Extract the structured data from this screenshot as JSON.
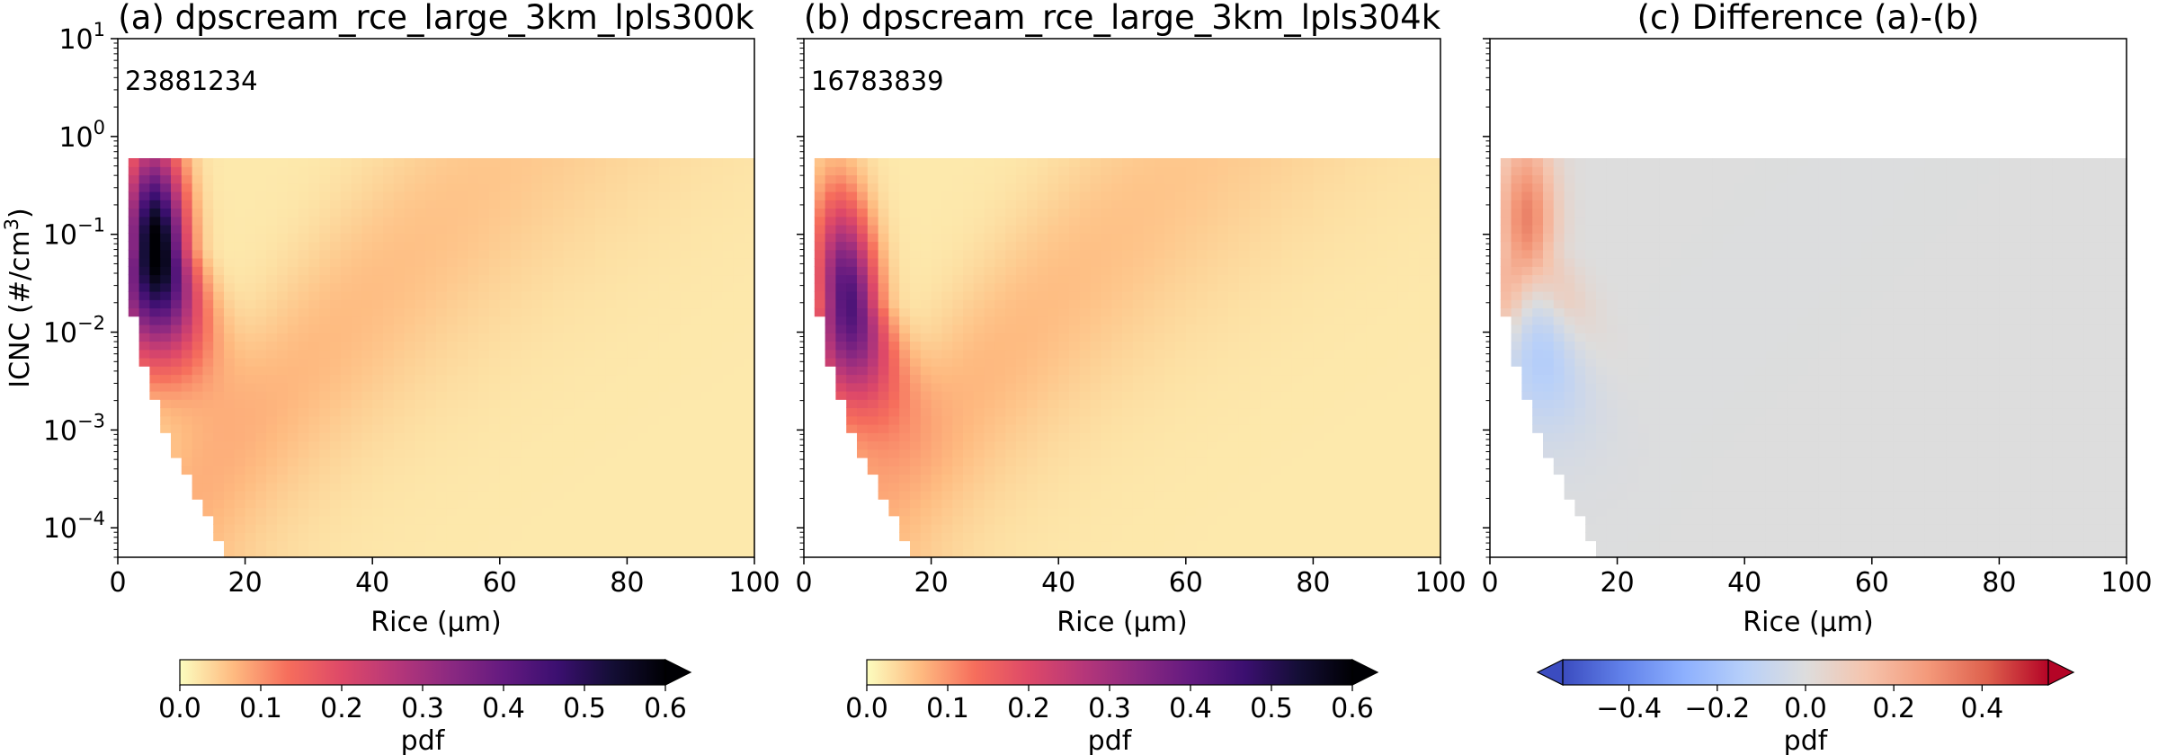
{
  "chart_data": [
    {
      "type": "heatmap",
      "panel": "a",
      "title": "(a) dpscream_rce_large_3km_lpls300k",
      "annotation": "23881234",
      "xlabel": "Rice (μm)",
      "ylabel": "ICNC (#/cm³)",
      "xlim": [
        0,
        100
      ],
      "ylim": [
        5e-05,
        10
      ],
      "yscale": "log",
      "xticks": [
        0,
        20,
        40,
        60,
        80,
        100
      ],
      "yticks": [
        {
          "value": 0.0001,
          "base": "10",
          "exp": "−4"
        },
        {
          "value": 0.001,
          "base": "10",
          "exp": "−3"
        },
        {
          "value": 0.01,
          "base": "10",
          "exp": "−2"
        },
        {
          "value": 0.1,
          "base": "10",
          "exp": "−1"
        },
        {
          "value": 1,
          "base": "10",
          "exp": "0"
        },
        {
          "value": 10,
          "base": "10",
          "exp": "1"
        }
      ],
      "colormap": "magma_r",
      "colorbar": {
        "label": "pdf",
        "min": 0.0,
        "max": 0.6,
        "extend": "max",
        "ticks": [
          "0.0",
          "0.1",
          "0.2",
          "0.3",
          "0.4",
          "0.5",
          "0.6"
        ]
      },
      "peak": {
        "x": 6,
        "y": 0.07,
        "value": 0.6
      }
    },
    {
      "type": "heatmap",
      "panel": "b",
      "title": "(b) dpscream_rce_large_3km_lpls304k",
      "annotation": "16783839",
      "xlabel": "Rice (μm)",
      "xlim": [
        0,
        100
      ],
      "ylim": [
        5e-05,
        10
      ],
      "yscale": "log",
      "xticks": [
        0,
        20,
        40,
        60,
        80,
        100
      ],
      "colormap": "magma_r",
      "colorbar": {
        "label": "pdf",
        "min": 0.0,
        "max": 0.6,
        "extend": "max",
        "ticks": [
          "0.0",
          "0.1",
          "0.2",
          "0.3",
          "0.4",
          "0.5",
          "0.6"
        ]
      },
      "peak": {
        "x": 7,
        "y": 0.02,
        "value": 0.42
      }
    },
    {
      "type": "heatmap",
      "panel": "c",
      "title": "(c) Difference (a)-(b)",
      "xlabel": "Rice (μm)",
      "xlim": [
        0,
        100
      ],
      "ylim": [
        5e-05,
        10
      ],
      "yscale": "log",
      "xticks": [
        0,
        20,
        40,
        60,
        80,
        100
      ],
      "colormap": "coolwarm",
      "colorbar": {
        "label": "pdf",
        "min": -0.55,
        "max": 0.55,
        "extend": "both",
        "ticks": [
          "−0.4",
          "−0.2",
          "0.0",
          "0.2",
          "0.4"
        ],
        "tick_values": [
          -0.4,
          -0.2,
          0.0,
          0.2,
          0.4
        ]
      },
      "peak_positive": {
        "x": 4,
        "y": 0.08,
        "value": 0.35
      },
      "peak_negative": {
        "x": 8,
        "y": 0.002,
        "value": -0.12
      }
    }
  ]
}
